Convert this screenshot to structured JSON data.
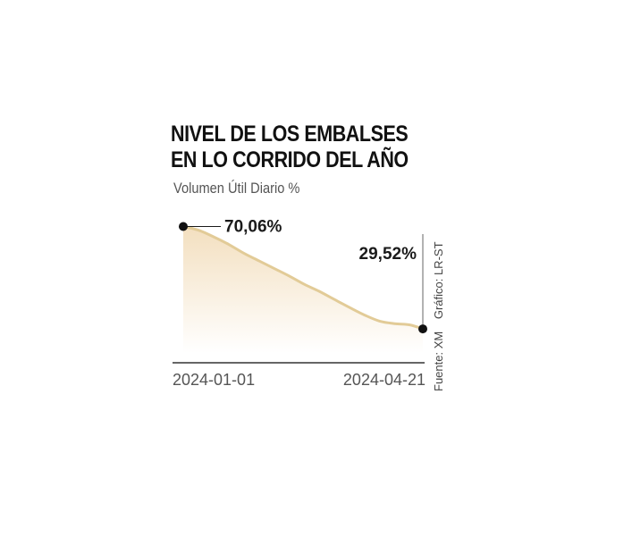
{
  "chart_data": {
    "type": "area",
    "title_lines": [
      "NIVEL DE LOS EMBALSES",
      "EN LO CORRIDO DEL AÑO"
    ],
    "subtitle": "Volumen Útil Diario %",
    "x": [
      "2024-01-01",
      "2024-01-08",
      "2024-01-15",
      "2024-01-22",
      "2024-01-29",
      "2024-02-05",
      "2024-02-12",
      "2024-02-19",
      "2024-02-26",
      "2024-03-04",
      "2024-03-11",
      "2024-03-18",
      "2024-03-25",
      "2024-04-01",
      "2024-04-08",
      "2024-04-15",
      "2024-04-21"
    ],
    "values": [
      70.06,
      68.6,
      66.0,
      63.0,
      59.5,
      56.5,
      53.5,
      50.5,
      47.2,
      44.4,
      41.2,
      38.0,
      35.0,
      32.6,
      31.6,
      31.1,
      29.52
    ],
    "tick_labels": [
      "2024-01-01",
      "2024-04-21"
    ],
    "annotations": [
      {
        "x": "2024-01-01",
        "label": "70,06%"
      },
      {
        "x": "2024-04-21",
        "label": "29,52%"
      }
    ],
    "ylim": [
      20,
      72
    ],
    "grid": false,
    "colors": {
      "line": "#e2cb97",
      "fill_top": "#f3dfbf",
      "fill_bottom": "#ffffff",
      "marker": "#111111",
      "axis": "#333333"
    }
  },
  "source": {
    "fuente": "Fuente: XM",
    "grafico": "Gráfico: LR-ST"
  }
}
